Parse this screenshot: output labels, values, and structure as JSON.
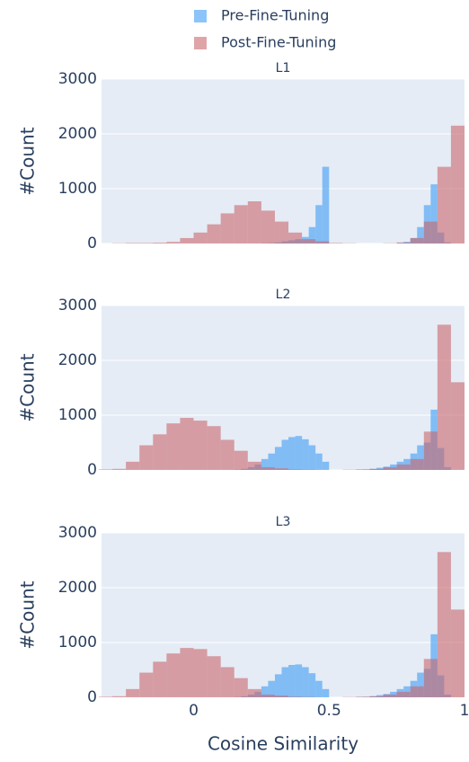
{
  "chart_data": [
    {
      "type": "histogram",
      "title": "L1",
      "ylabel": "#Count",
      "xlim": [
        -0.34,
        1
      ],
      "ylim": [
        0,
        3000
      ],
      "yticks": [
        0,
        1000,
        2000,
        3000
      ],
      "grid": true,
      "series": [
        {
          "name": "Pre-Fine-Tuning",
          "color": "#3d9cf5",
          "bins": [
            0.25,
            0.275,
            0.3,
            0.325,
            0.35,
            0.375,
            0.4,
            0.425,
            0.45,
            0.475,
            0.5,
            0.525,
            0.55,
            0.575,
            0.6,
            0.625,
            0.65,
            0.675,
            0.7,
            0.725,
            0.75,
            0.775,
            0.8,
            0.825,
            0.85,
            0.875,
            0.9,
            0.925,
            0.95
          ],
          "values": [
            5,
            10,
            20,
            40,
            60,
            80,
            120,
            300,
            700,
            1400,
            0,
            0,
            0,
            0,
            0,
            0,
            0,
            0,
            0,
            0,
            10,
            30,
            100,
            300,
            700,
            1080,
            200,
            20
          ]
        },
        {
          "name": "Post-Fine-Tuning",
          "color": "#c9686c",
          "bins": [
            -0.3,
            -0.25,
            -0.2,
            -0.15,
            -0.1,
            -0.05,
            0,
            0.05,
            0.1,
            0.15,
            0.2,
            0.25,
            0.3,
            0.35,
            0.4,
            0.45,
            0.5,
            0.55,
            0.6,
            0.65,
            0.7,
            0.75,
            0.8,
            0.85,
            0.9,
            0.95,
            1
          ],
          "values": [
            5,
            10,
            10,
            15,
            30,
            100,
            200,
            350,
            550,
            700,
            770,
            600,
            400,
            200,
            80,
            40,
            10,
            5,
            0,
            0,
            5,
            20,
            100,
            400,
            1400,
            2150
          ]
        }
      ]
    },
    {
      "type": "histogram",
      "title": "L2",
      "ylabel": "#Count",
      "xlim": [
        -0.34,
        1
      ],
      "ylim": [
        0,
        3000
      ],
      "yticks": [
        0,
        1000,
        2000,
        3000
      ],
      "grid": true,
      "series": [
        {
          "color": "#3d9cf5",
          "bins": [
            0.15,
            0.175,
            0.2,
            0.225,
            0.25,
            0.275,
            0.3,
            0.325,
            0.35,
            0.375,
            0.4,
            0.425,
            0.45,
            0.475,
            0.5,
            0.525,
            0.55,
            0.575,
            0.6,
            0.625,
            0.65,
            0.675,
            0.7,
            0.725,
            0.75,
            0.775,
            0.8,
            0.825,
            0.85,
            0.875,
            0.9,
            0.925,
            0.95
          ],
          "values": [
            5,
            20,
            50,
            100,
            200,
            300,
            420,
            550,
            600,
            620,
            560,
            450,
            300,
            150,
            0,
            0,
            0,
            0,
            5,
            10,
            20,
            40,
            60,
            100,
            150,
            200,
            300,
            450,
            500,
            1100,
            400,
            50
          ]
        },
        {
          "color": "#c9686c",
          "bins": [
            -0.35,
            -0.3,
            -0.25,
            -0.2,
            -0.15,
            -0.1,
            -0.05,
            0,
            0.05,
            0.1,
            0.15,
            0.2,
            0.25,
            0.3,
            0.35,
            0.4,
            0.45,
            0.5,
            0.55,
            0.6,
            0.65,
            0.7,
            0.75,
            0.8,
            0.85,
            0.9,
            0.95,
            1
          ],
          "values": [
            10,
            20,
            150,
            450,
            650,
            850,
            950,
            900,
            800,
            550,
            350,
            150,
            50,
            30,
            10,
            5,
            0,
            0,
            5,
            10,
            20,
            50,
            100,
            200,
            700,
            2650,
            1600
          ]
        }
      ]
    },
    {
      "type": "histogram",
      "title": "L3",
      "ylabel": "#Count",
      "xlabel": "Cosine Similarity",
      "xlim": [
        -0.34,
        1
      ],
      "ylim": [
        0,
        3000
      ],
      "yticks": [
        0,
        1000,
        2000,
        3000
      ],
      "xticks": [
        0,
        0.5,
        1
      ],
      "grid": true,
      "series": [
        {
          "color": "#3d9cf5",
          "bins": [
            0.15,
            0.175,
            0.2,
            0.225,
            0.25,
            0.275,
            0.3,
            0.325,
            0.35,
            0.375,
            0.4,
            0.425,
            0.45,
            0.475,
            0.5,
            0.525,
            0.55,
            0.575,
            0.6,
            0.625,
            0.65,
            0.675,
            0.7,
            0.725,
            0.75,
            0.775,
            0.8,
            0.825,
            0.85,
            0.875,
            0.9,
            0.925,
            0.95
          ],
          "values": [
            5,
            20,
            50,
            100,
            200,
            300,
            420,
            550,
            590,
            600,
            550,
            440,
            300,
            150,
            0,
            0,
            0,
            0,
            5,
            10,
            20,
            40,
            60,
            100,
            150,
            200,
            300,
            450,
            520,
            1150,
            400,
            50
          ]
        },
        {
          "color": "#c9686c",
          "bins": [
            -0.35,
            -0.3,
            -0.25,
            -0.2,
            -0.15,
            -0.1,
            -0.05,
            0,
            0.05,
            0.1,
            0.15,
            0.2,
            0.25,
            0.3,
            0.35,
            0.4,
            0.45,
            0.5,
            0.55,
            0.6,
            0.65,
            0.7,
            0.75,
            0.8,
            0.85,
            0.9,
            0.95,
            1
          ],
          "values": [
            10,
            20,
            150,
            450,
            650,
            800,
            900,
            880,
            750,
            550,
            350,
            150,
            50,
            30,
            10,
            5,
            0,
            0,
            5,
            10,
            20,
            50,
            100,
            200,
            700,
            2650,
            1600
          ]
        }
      ]
    }
  ]
}
